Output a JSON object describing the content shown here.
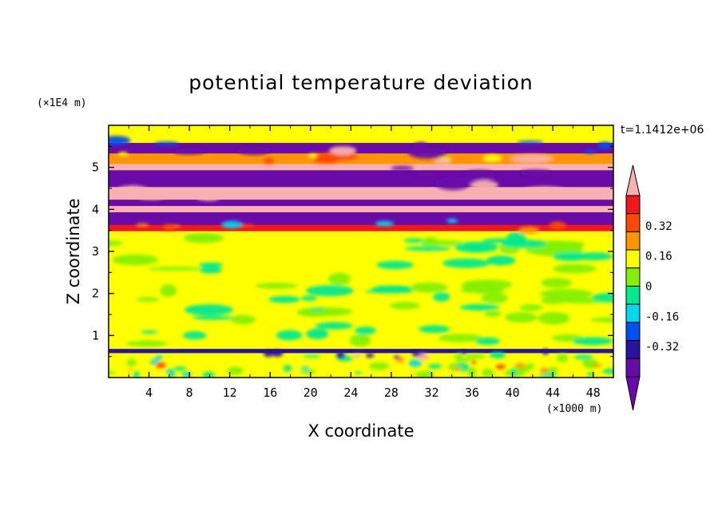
{
  "chart_data": {
    "type": "heatmap",
    "title": "potential temperature deviation",
    "xlabel": "X coordinate",
    "ylabel": "Z coordinate",
    "x_unit": "(×1000 m)",
    "y_unit": "(×1E4 m)",
    "time_label": "t=1.1412e+06",
    "xlim": [
      0,
      50
    ],
    "ylim": [
      0,
      6
    ],
    "x_ticks": [
      4,
      8,
      12,
      16,
      20,
      24,
      28,
      32,
      36,
      40,
      44,
      48
    ],
    "y_ticks": [
      1,
      2,
      3,
      4,
      5
    ],
    "levels": [
      -0.48,
      -0.4,
      -0.32,
      -0.24,
      -0.16,
      -0.08,
      0,
      0.08,
      0.16,
      0.24,
      0.32,
      0.4,
      0.48
    ],
    "colorbar_labels": [
      "0.32",
      "0.16",
      "0",
      "-0.16",
      "-0.32"
    ],
    "colorbar_label_values": [
      0.32,
      0.16,
      0,
      -0.16,
      -0.32
    ],
    "colors": {
      "below": "#6a0aa8",
      "bins": [
        "#6a0aa8",
        "#2a12a0",
        "#0050f0",
        "#00d8f0",
        "#00e890",
        "#84f000",
        "#ffff00",
        "#ff9600",
        "#ff4a00",
        "#f01818"
      ],
      "above": "#f8b0b0"
    },
    "bands": [
      {
        "z": [
          0.0,
          0.6
        ],
        "value": 0.02
      },
      {
        "z": [
          0.6,
          0.7
        ],
        "value": -0.38
      },
      {
        "z": [
          0.7,
          3.5
        ],
        "value": 0.02
      },
      {
        "z": [
          3.5,
          3.65
        ],
        "value": 0.45
      },
      {
        "z": [
          3.65,
          3.95
        ],
        "value": -0.5
      },
      {
        "z": [
          3.95,
          4.1
        ],
        "value": 0.5
      },
      {
        "z": [
          4.1,
          4.25
        ],
        "value": -0.5
      },
      {
        "z": [
          4.25,
          4.55
        ],
        "value": 0.5
      },
      {
        "z": [
          4.55,
          4.95
        ],
        "value": -0.5
      },
      {
        "z": [
          4.95,
          5.1
        ],
        "value": 0.5
      },
      {
        "z": [
          5.1,
          5.35
        ],
        "value": 0.1
      },
      {
        "z": [
          5.35,
          5.6
        ],
        "value": -0.5
      },
      {
        "z": [
          5.6,
          6.0
        ],
        "value": 0.06
      }
    ]
  }
}
